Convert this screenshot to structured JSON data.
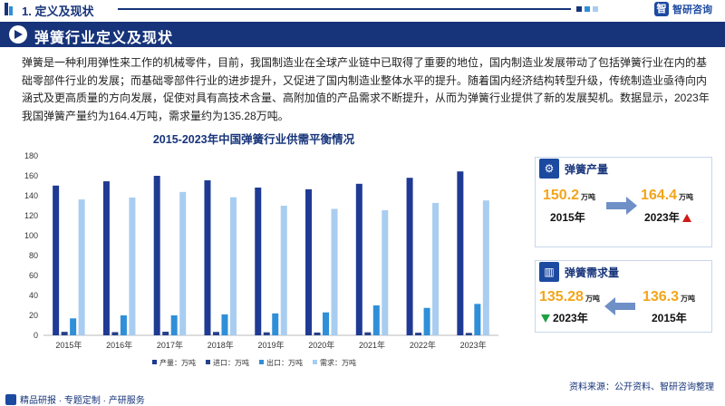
{
  "header": {
    "section_title": "1. 定义及现状",
    "brand_name": "智研咨询",
    "brand_logo_char": "智"
  },
  "banner": {
    "title": "弹簧行业定义及现状"
  },
  "intro": {
    "text": "弹簧是一种利用弹性来工作的机械零件，目前，我国制造业在全球产业链中已取得了重要的地位，国内制造业发展带动了包括弹簧行业在内的基础零部件行业的发展；而基础零部件行业的进步提升，又促进了国内制造业整体水平的提升。随着国内经济结构转型升级，传统制造业亟待向内涵式及更高质量的方向发展，促使对具有高技术含量、高附加值的产品需求不断提升，从而为弹簧行业提供了新的发展契机。数据显示，2023年我国弹簧产量约为164.4万吨，需求量约为135.28万吨。"
  },
  "chart_data": {
    "type": "bar",
    "title": "2015-2023年中国弹簧行业供需平衡情况",
    "categories": [
      "2015年",
      "2016年",
      "2017年",
      "2018年",
      "2019年",
      "2020年",
      "2021年",
      "2022年",
      "2023年"
    ],
    "ylim": [
      0,
      180
    ],
    "yticks": [
      0,
      20,
      40,
      60,
      80,
      100,
      120,
      140,
      160,
      180
    ],
    "grid": false,
    "legend_position": "bottom",
    "series": [
      {
        "name": "产量：万吨",
        "color": "#1f3a93",
        "values": [
          150.2,
          154.5,
          160.0,
          155.5,
          148.2,
          146.5,
          152.0,
          158.0,
          164.4
        ]
      },
      {
        "name": "进口：万吨",
        "color": "#27408b",
        "values": [
          3.5,
          3.2,
          3.6,
          3.4,
          3.0,
          2.8,
          3.0,
          2.6,
          2.4
        ]
      },
      {
        "name": "出口：万吨",
        "color": "#2f8fd8",
        "values": [
          17.0,
          20.0,
          20.0,
          21.0,
          22.0,
          23.0,
          30.0,
          27.5,
          31.5
        ]
      },
      {
        "name": "需求：万吨",
        "color": "#a8cdf0",
        "values": [
          136.3,
          138.2,
          143.8,
          138.5,
          130.0,
          126.8,
          125.5,
          132.8,
          135.28
        ]
      }
    ]
  },
  "production_card": {
    "title": "弹簧产量",
    "icon": "factory-icon",
    "start_value": "150.2",
    "start_unit": "万吨",
    "start_year": "2015年",
    "end_value": "164.4",
    "end_unit": "万吨",
    "end_year": "2023年",
    "trend": "up"
  },
  "demand_card": {
    "title": "弹簧需求量",
    "icon": "bar-chart-icon",
    "start_value": "136.3",
    "start_unit": "万吨",
    "start_year": "2015年",
    "end_value": "135.28",
    "end_unit": "万吨",
    "end_year": "2023年",
    "trend": "down"
  },
  "footer": {
    "left_text": "精品研报 · 专题定制 · 产研服务",
    "source_text": "资料来源：公开资料、智研咨询整理"
  },
  "colors": {
    "primary": "#17347a",
    "accent_orange": "#f3a51a",
    "up_red": "#d11a1a",
    "down_green": "#20a040"
  }
}
